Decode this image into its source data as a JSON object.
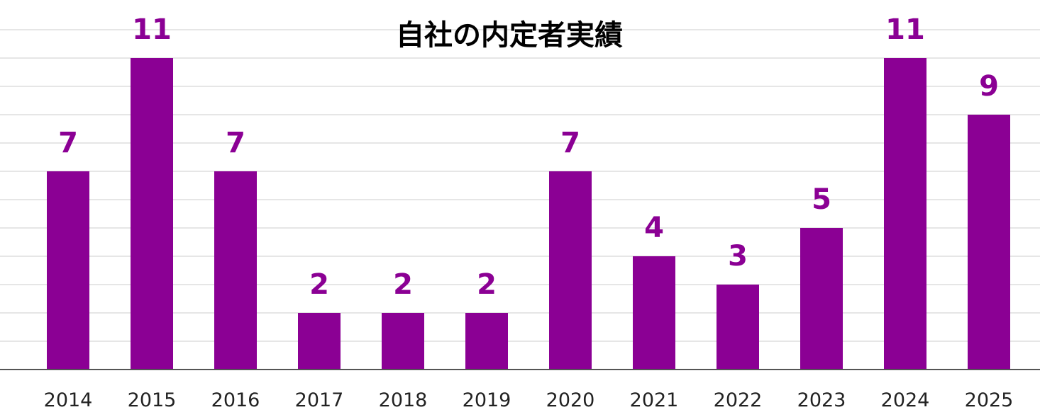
{
  "chart_data": {
    "type": "bar",
    "title": "自社の内定者実績",
    "categories": [
      "2014",
      "2015",
      "2016",
      "2017",
      "2018",
      "2019",
      "2020",
      "2021",
      "2022",
      "2023",
      "2024",
      "2025"
    ],
    "values": [
      7,
      11,
      7,
      2,
      2,
      2,
      7,
      4,
      3,
      5,
      11,
      9
    ],
    "xlabel": "",
    "ylabel": "",
    "ylim": [
      0,
      12
    ],
    "grid": true,
    "legend": "none",
    "data_labels": true,
    "colors": {
      "bar": "#8B0094",
      "label": "#8B0094",
      "grid": "#dddddd",
      "axis": "#555555"
    }
  }
}
